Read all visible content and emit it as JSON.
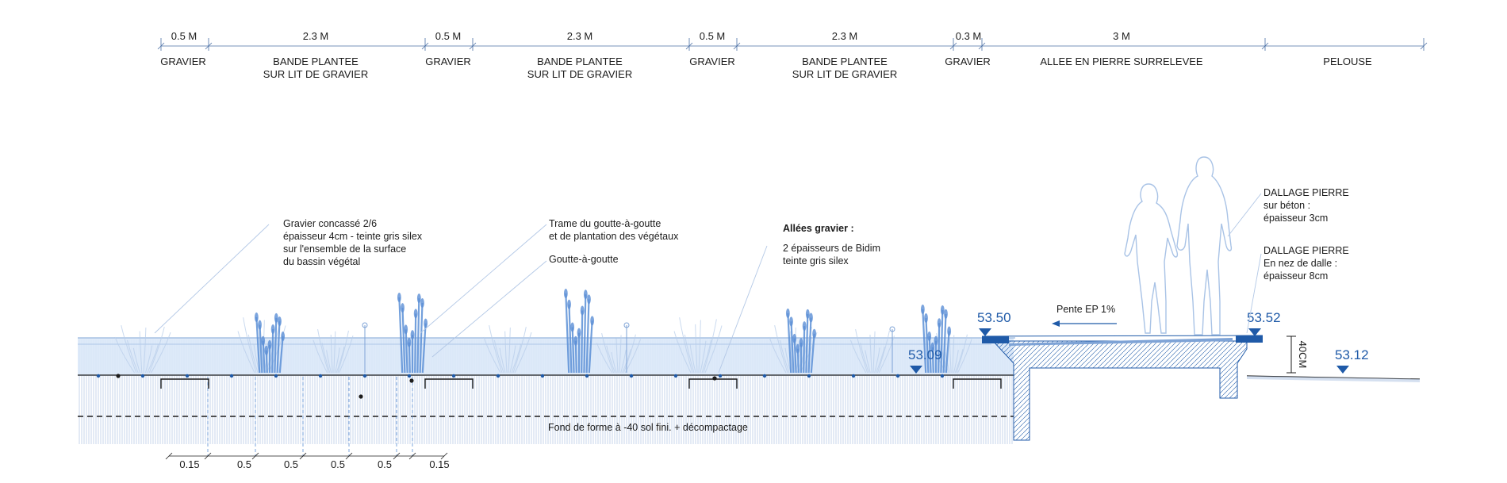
{
  "top_dimensions": [
    "0.5 M",
    "2.3 M",
    "0.5 M",
    "2.3 M",
    "0.5 M",
    "2.3 M",
    "0.3 M",
    "3 M"
  ],
  "zones": [
    {
      "line1": "GRAVIER",
      "line2": ""
    },
    {
      "line1": "BANDE PLANTEE",
      "line2": "SUR LIT DE GRAVIER"
    },
    {
      "line1": "GRAVIER",
      "line2": ""
    },
    {
      "line1": "BANDE PLANTEE",
      "line2": "SUR LIT DE GRAVIER"
    },
    {
      "line1": "GRAVIER",
      "line2": ""
    },
    {
      "line1": "BANDE PLANTEE",
      "line2": "SUR LIT DE GRAVIER"
    },
    {
      "line1": "GRAVIER",
      "line2": ""
    },
    {
      "line1": "ALLEE EN PIERRE SURRELEVEE",
      "line2": ""
    },
    {
      "line1": "PELOUSE",
      "line2": ""
    }
  ],
  "notes": {
    "gravier": [
      "Gravier concassé 2/6",
      "épaisseur 4cm - teinte gris silex",
      "sur l'ensemble de la surface",
      "du bassin végétal"
    ],
    "trame": [
      "Trame du goutte-à-goutte",
      "et de plantation des végétaux"
    ],
    "goutte": "Goutte-à-goutte",
    "allees_title": "Allées gravier :",
    "allees": [
      "2 épaisseurs de Bidim",
      "teinte gris silex"
    ],
    "dallage1": [
      "DALLAGE PIERRE",
      "sur béton :",
      "épaisseur 3cm"
    ],
    "dallage2": [
      "DALLAGE PIERRE",
      "En nez de dalle :",
      "épaisseur 8cm"
    ],
    "pente": "Pente EP 1%",
    "fond": "Fond de forme à -40 sol fini. + décompactage",
    "height": "40CM"
  },
  "levels": [
    "53.50",
    "53.52",
    "53.09",
    "53.12"
  ],
  "bottom_dimensions": [
    "0.15",
    "0.5",
    "0.5",
    "0.5",
    "0.5",
    "0.15"
  ],
  "colors": {
    "accent": "#1f5aa8",
    "water": "#dce9f8",
    "plant": "#5b8fd6",
    "ink": "#1c1c1c"
  }
}
